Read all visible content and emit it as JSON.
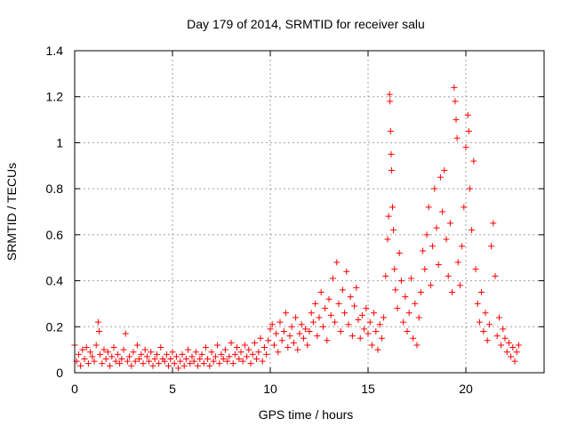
{
  "chart_data": {
    "type": "scatter",
    "title": "Day 179 of 2014, SRMTID for receiver salu",
    "xlabel": "GPS time / hours",
    "ylabel": "SRMTID / TECUs",
    "xlim": [
      0,
      24
    ],
    "ylim": [
      0,
      1.4
    ],
    "x_ticks": [
      0,
      5,
      10,
      15,
      20
    ],
    "x_tick_labels": [
      "0",
      "5",
      "10",
      "15",
      "20"
    ],
    "y_ticks": [
      0,
      0.2,
      0.4,
      0.6,
      0.8,
      1.0,
      1.2,
      1.4
    ],
    "y_tick_labels": [
      "0",
      "0.2",
      "0.4",
      "0.6",
      "0.8",
      "1",
      "1.2",
      "1.4"
    ],
    "grid": true,
    "marker": "plus",
    "color": "#ff0000",
    "series": [
      {
        "name": "SRMTID",
        "points": [
          [
            0.0,
            0.12
          ],
          [
            0.1,
            0.05
          ],
          [
            0.2,
            0.08
          ],
          [
            0.3,
            0.03
          ],
          [
            0.4,
            0.1
          ],
          [
            0.5,
            0.06
          ],
          [
            0.6,
            0.11
          ],
          [
            0.7,
            0.04
          ],
          [
            0.8,
            0.09
          ],
          [
            0.9,
            0.07
          ],
          [
            1.0,
            0.05
          ],
          [
            1.1,
            0.12
          ],
          [
            1.2,
            0.22
          ],
          [
            1.25,
            0.18
          ],
          [
            1.3,
            0.08
          ],
          [
            1.4,
            0.04
          ],
          [
            1.5,
            0.1
          ],
          [
            1.6,
            0.06
          ],
          [
            1.7,
            0.09
          ],
          [
            1.8,
            0.03
          ],
          [
            1.9,
            0.07
          ],
          [
            2.0,
            0.11
          ],
          [
            2.1,
            0.05
          ],
          [
            2.2,
            0.08
          ],
          [
            2.3,
            0.04
          ],
          [
            2.4,
            0.06
          ],
          [
            2.5,
            0.1
          ],
          [
            2.6,
            0.17
          ],
          [
            2.7,
            0.05
          ],
          [
            2.8,
            0.07
          ],
          [
            2.9,
            0.03
          ],
          [
            3.0,
            0.09
          ],
          [
            3.1,
            0.05
          ],
          [
            3.2,
            0.12
          ],
          [
            3.3,
            0.06
          ],
          [
            3.4,
            0.08
          ],
          [
            3.5,
            0.04
          ],
          [
            3.6,
            0.1
          ],
          [
            3.7,
            0.07
          ],
          [
            3.8,
            0.05
          ],
          [
            3.9,
            0.09
          ],
          [
            4.0,
            0.03
          ],
          [
            4.1,
            0.06
          ],
          [
            4.2,
            0.08
          ],
          [
            4.3,
            0.04
          ],
          [
            4.4,
            0.11
          ],
          [
            4.5,
            0.06
          ],
          [
            4.6,
            0.05
          ],
          [
            4.7,
            0.08
          ],
          [
            4.8,
            0.03
          ],
          [
            4.9,
            0.06
          ],
          [
            5.0,
            0.09
          ],
          [
            5.1,
            0.04
          ],
          [
            5.2,
            0.07
          ],
          [
            5.3,
            0.02
          ],
          [
            5.4,
            0.05
          ],
          [
            5.5,
            0.08
          ],
          [
            5.6,
            0.03
          ],
          [
            5.7,
            0.06
          ],
          [
            5.8,
            0.1
          ],
          [
            5.9,
            0.04
          ],
          [
            6.0,
            0.07
          ],
          [
            6.1,
            0.05
          ],
          [
            6.2,
            0.09
          ],
          [
            6.3,
            0.03
          ],
          [
            6.4,
            0.06
          ],
          [
            6.5,
            0.08
          ],
          [
            6.6,
            0.04
          ],
          [
            6.7,
            0.11
          ],
          [
            6.8,
            0.06
          ],
          [
            6.9,
            0.03
          ],
          [
            7.0,
            0.09
          ],
          [
            7.1,
            0.05
          ],
          [
            7.2,
            0.07
          ],
          [
            7.3,
            0.12
          ],
          [
            7.4,
            0.04
          ],
          [
            7.5,
            0.08
          ],
          [
            7.6,
            0.06
          ],
          [
            7.7,
            0.1
          ],
          [
            7.8,
            0.05
          ],
          [
            7.9,
            0.07
          ],
          [
            8.0,
            0.13
          ],
          [
            8.1,
            0.04
          ],
          [
            8.2,
            0.08
          ],
          [
            8.3,
            0.11
          ],
          [
            8.4,
            0.06
          ],
          [
            8.5,
            0.09
          ],
          [
            8.6,
            0.05
          ],
          [
            8.7,
            0.12
          ],
          [
            8.8,
            0.07
          ],
          [
            8.9,
            0.1
          ],
          [
            9.0,
            0.04
          ],
          [
            9.1,
            0.08
          ],
          [
            9.2,
            0.13
          ],
          [
            9.3,
            0.06
          ],
          [
            9.4,
            0.09
          ],
          [
            9.5,
            0.15
          ],
          [
            9.6,
            0.05
          ],
          [
            9.7,
            0.11
          ],
          [
            9.8,
            0.08
          ],
          [
            9.9,
            0.14
          ],
          [
            10.0,
            0.19
          ],
          [
            10.1,
            0.21
          ],
          [
            10.2,
            0.12
          ],
          [
            10.3,
            0.17
          ],
          [
            10.4,
            0.09
          ],
          [
            10.5,
            0.22
          ],
          [
            10.6,
            0.14
          ],
          [
            10.7,
            0.18
          ],
          [
            10.8,
            0.26
          ],
          [
            10.9,
            0.11
          ],
          [
            11.0,
            0.16
          ],
          [
            11.1,
            0.2
          ],
          [
            11.2,
            0.13
          ],
          [
            11.3,
            0.24
          ],
          [
            11.4,
            0.1
          ],
          [
            11.5,
            0.17
          ],
          [
            11.6,
            0.21
          ],
          [
            11.7,
            0.15
          ],
          [
            11.8,
            0.19
          ],
          [
            11.9,
            0.12
          ],
          [
            12.0,
            0.18
          ],
          [
            12.1,
            0.26
          ],
          [
            12.2,
            0.22
          ],
          [
            12.3,
            0.3
          ],
          [
            12.4,
            0.16
          ],
          [
            12.5,
            0.24
          ],
          [
            12.6,
            0.35
          ],
          [
            12.7,
            0.2
          ],
          [
            12.8,
            0.28
          ],
          [
            12.9,
            0.14
          ],
          [
            13.0,
            0.32
          ],
          [
            13.1,
            0.25
          ],
          [
            13.2,
            0.41
          ],
          [
            13.3,
            0.22
          ],
          [
            13.4,
            0.48
          ],
          [
            13.5,
            0.3
          ],
          [
            13.6,
            0.18
          ],
          [
            13.7,
            0.36
          ],
          [
            13.8,
            0.26
          ],
          [
            13.9,
            0.44
          ],
          [
            14.0,
            0.21
          ],
          [
            14.1,
            0.33
          ],
          [
            14.2,
            0.16
          ],
          [
            14.3,
            0.29
          ],
          [
            14.4,
            0.37
          ],
          [
            14.5,
            0.23
          ],
          [
            14.6,
            0.15
          ],
          [
            14.7,
            0.25
          ],
          [
            14.8,
            0.19
          ],
          [
            14.9,
            0.28
          ],
          [
            15.0,
            0.17
          ],
          [
            15.1,
            0.22
          ],
          [
            15.2,
            0.12
          ],
          [
            15.3,
            0.26
          ],
          [
            15.4,
            0.18
          ],
          [
            15.5,
            0.1
          ],
          [
            15.6,
            0.21
          ],
          [
            15.7,
            0.15
          ],
          [
            15.8,
            0.24
          ],
          [
            15.9,
            0.42
          ],
          [
            16.0,
            0.58
          ],
          [
            16.05,
            0.68
          ],
          [
            16.1,
            1.21
          ],
          [
            16.12,
            1.18
          ],
          [
            16.15,
            1.05
          ],
          [
            16.18,
            0.95
          ],
          [
            16.2,
            0.88
          ],
          [
            16.25,
            0.72
          ],
          [
            16.3,
            0.62
          ],
          [
            16.35,
            0.45
          ],
          [
            16.4,
            0.36
          ],
          [
            16.5,
            0.28
          ],
          [
            16.6,
            0.52
          ],
          [
            16.7,
            0.4
          ],
          [
            16.8,
            0.22
          ],
          [
            16.9,
            0.33
          ],
          [
            17.0,
            0.18
          ],
          [
            17.1,
            0.26
          ],
          [
            17.2,
            0.41
          ],
          [
            17.3,
            0.15
          ],
          [
            17.4,
            0.3
          ],
          [
            17.5,
            0.12
          ],
          [
            17.6,
            0.24
          ],
          [
            17.7,
            0.35
          ],
          [
            17.8,
            0.53
          ],
          [
            17.9,
            0.45
          ],
          [
            18.0,
            0.6
          ],
          [
            18.1,
            0.72
          ],
          [
            18.2,
            0.38
          ],
          [
            18.3,
            0.55
          ],
          [
            18.4,
            0.8
          ],
          [
            18.5,
            0.63
          ],
          [
            18.6,
            0.47
          ],
          [
            18.7,
            0.85
          ],
          [
            18.8,
            0.7
          ],
          [
            18.9,
            0.88
          ],
          [
            19.0,
            0.58
          ],
          [
            19.1,
            0.42
          ],
          [
            19.2,
            0.65
          ],
          [
            19.3,
            0.35
          ],
          [
            19.4,
            1.24
          ],
          [
            19.45,
            1.18
          ],
          [
            19.5,
            1.1
          ],
          [
            19.55,
            1.02
          ],
          [
            19.6,
            0.48
          ],
          [
            19.7,
            0.38
          ],
          [
            19.8,
            0.55
          ],
          [
            19.9,
            0.72
          ],
          [
            20.0,
            0.98
          ],
          [
            20.1,
            1.12
          ],
          [
            20.15,
            1.05
          ],
          [
            20.2,
            0.8
          ],
          [
            20.3,
            0.62
          ],
          [
            20.4,
            0.92
          ],
          [
            20.5,
            0.45
          ],
          [
            20.6,
            0.3
          ],
          [
            20.7,
            0.22
          ],
          [
            20.8,
            0.35
          ],
          [
            20.9,
            0.18
          ],
          [
            21.0,
            0.26
          ],
          [
            21.1,
            0.14
          ],
          [
            21.2,
            0.21
          ],
          [
            21.3,
            0.55
          ],
          [
            21.4,
            0.65
          ],
          [
            21.5,
            0.42
          ],
          [
            21.6,
            0.16
          ],
          [
            21.7,
            0.24
          ],
          [
            21.8,
            0.12
          ],
          [
            21.9,
            0.19
          ],
          [
            22.0,
            0.15
          ],
          [
            22.1,
            0.09
          ],
          [
            22.2,
            0.13
          ],
          [
            22.3,
            0.07
          ],
          [
            22.4,
            0.11
          ],
          [
            22.5,
            0.05
          ],
          [
            22.6,
            0.09
          ],
          [
            22.7,
            0.12
          ]
        ]
      }
    ]
  }
}
